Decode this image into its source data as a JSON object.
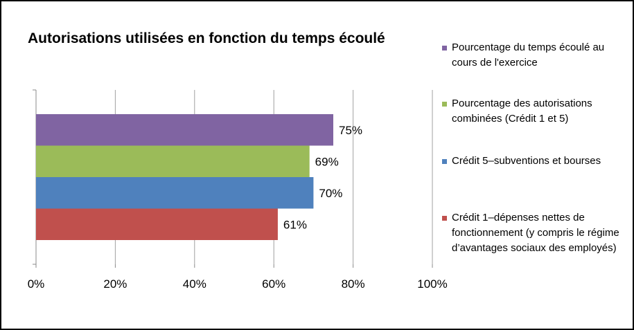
{
  "chart_data": {
    "type": "bar",
    "orientation": "horizontal",
    "title": "Autorisations utilisées en fonction du temps écoulé",
    "xlabel": "",
    "ylabel": "",
    "xlim": [
      0,
      100
    ],
    "x_ticks": [
      "0%",
      "20%",
      "40%",
      "60%",
      "80%",
      "100%"
    ],
    "grid": "vertical",
    "legend_position": "right",
    "series": [
      {
        "name": "Pourcentage du temps écoulé au cours de l'exercice",
        "value": 75,
        "label": "75%",
        "color": "#8064a2"
      },
      {
        "name": "Pourcentage des autorisations combinées (Crédit 1 et 5)",
        "value": 69,
        "label": "69%",
        "color": "#9bbb59"
      },
      {
        "name": "Crédit 5–subventions et bourses",
        "value": 70,
        "label": "70%",
        "color": "#4f81bd"
      },
      {
        "name": "Crédit 1–dépenses nettes de fonctionnement (y compris le régime d’avantages sociaux des employés)",
        "value": 61,
        "label": "61%",
        "color": "#c0504d"
      }
    ]
  }
}
